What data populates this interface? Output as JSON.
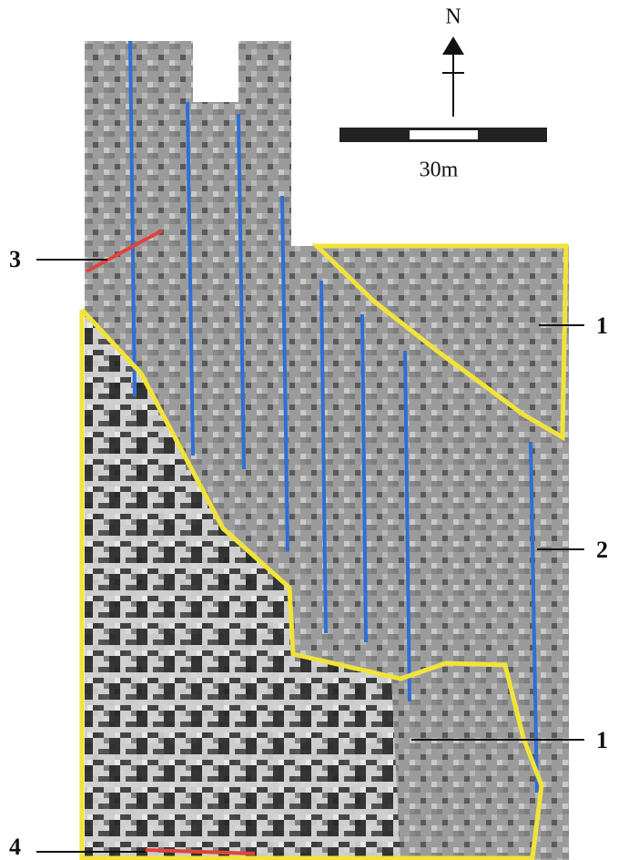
{
  "north_label": "N",
  "scale_label": "30m",
  "callouts": [
    "3",
    "1",
    "2",
    "1",
    "4"
  ]
}
